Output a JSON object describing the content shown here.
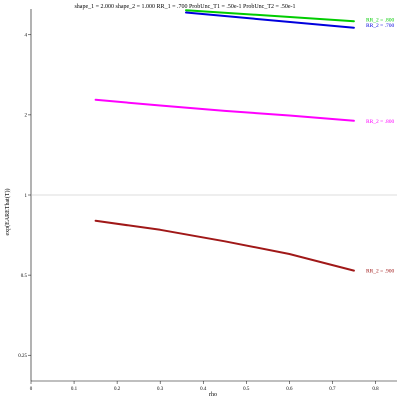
{
  "chart_data": {
    "type": "line",
    "title": "shape_1 = 2.000  shape_2 = 1.000  RR_1 = .700  ProbUnc_T1 = .50e-1  ProbUnc_T2 = .50e-1",
    "xlabel": "rho",
    "ylabel": "exp(EAREThat(T))",
    "xlim": [
      0,
      0.85
    ],
    "ylim": [
      0.2,
      5
    ],
    "yscale": "log",
    "x_ticks": [
      "0",
      "0.1",
      "0.2",
      "0.3",
      "0.4",
      "0.5",
      "0.6",
      "0.7",
      "0.8"
    ],
    "y_ticks": [
      "0.25",
      "0.5",
      "1",
      "2",
      "4"
    ],
    "reference_line": 1,
    "grid": false,
    "series": [
      {
        "name": "RR_2 = .800",
        "color": "#00cc00",
        "x": [
          0.36,
          0.75
        ],
        "y": [
          4.95,
          4.5
        ]
      },
      {
        "name": "RR_2 = .700",
        "color": "#0000dd",
        "x": [
          0.36,
          0.75
        ],
        "y": [
          4.85,
          4.25
        ]
      },
      {
        "name": "RR_2 = .800",
        "color": "#ff00ff",
        "x": [
          0.15,
          0.3,
          0.45,
          0.6,
          0.75
        ],
        "y": [
          2.28,
          2.17,
          2.07,
          1.99,
          1.9
        ]
      },
      {
        "name": "RR_2 = .900",
        "color": "#a01818",
        "x": [
          0.15,
          0.3,
          0.45,
          0.6,
          0.75
        ],
        "y": [
          0.8,
          0.74,
          0.67,
          0.6,
          0.52
        ]
      }
    ]
  }
}
